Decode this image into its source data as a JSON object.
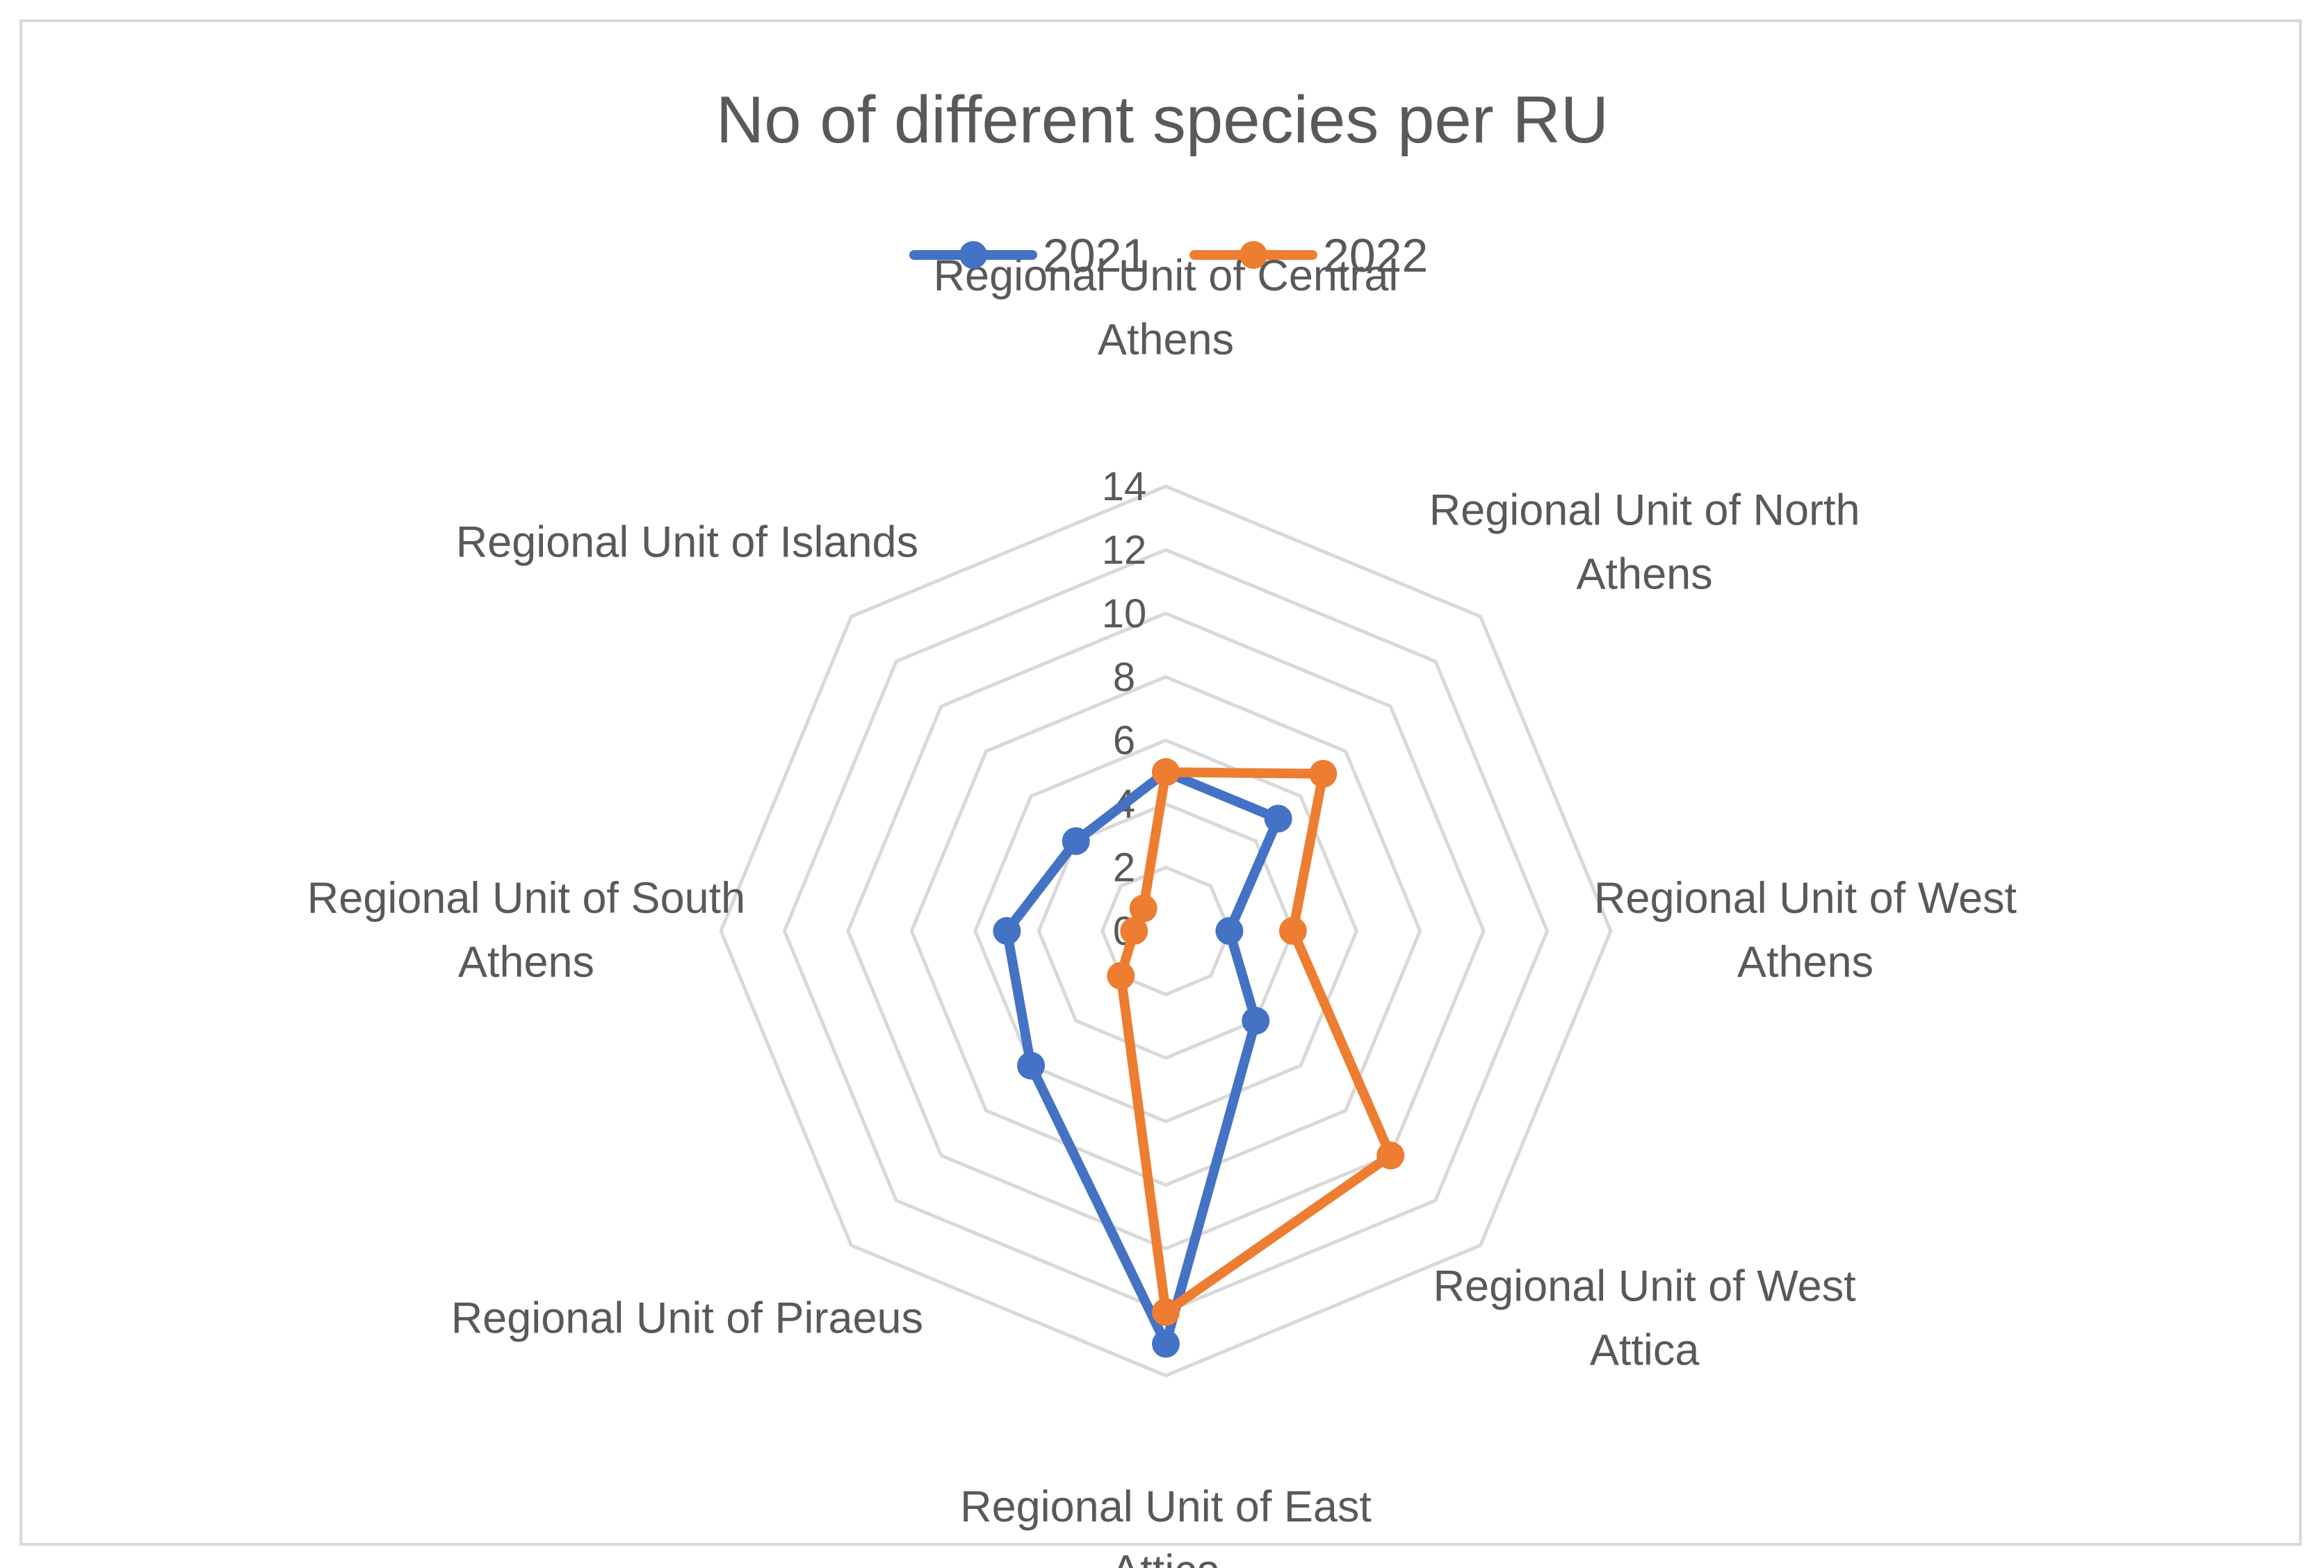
{
  "chart_data": {
    "type": "radar",
    "title": "No of different species per RU",
    "categories": [
      [
        "Regional Unit of Central",
        "Athens"
      ],
      [
        "Regional Unit of North",
        "Athens"
      ],
      [
        "Regional Unit of West",
        "Athens"
      ],
      [
        "Regional Unit of West",
        "Attica"
      ],
      [
        "Regional Unit of East",
        "Attica"
      ],
      [
        "Regional Unit of Piraeus"
      ],
      [
        "Regional Unit of South",
        "Athens"
      ],
      [
        "Regional Unit of Islands"
      ]
    ],
    "radial_ticks": [
      "0",
      "2",
      "4",
      "6",
      "8",
      "10",
      "12",
      "14"
    ],
    "rmin": 0,
    "rmax": 14,
    "grid": true,
    "legend_position": "top",
    "series": [
      {
        "name": "2021",
        "color": "#4472C4",
        "values": [
          5,
          5,
          2,
          4,
          13,
          6,
          5,
          4
        ]
      },
      {
        "name": "2022",
        "color": "#ED7D31",
        "values": [
          5,
          7,
          4,
          10,
          12,
          2,
          1,
          1
        ]
      }
    ]
  }
}
